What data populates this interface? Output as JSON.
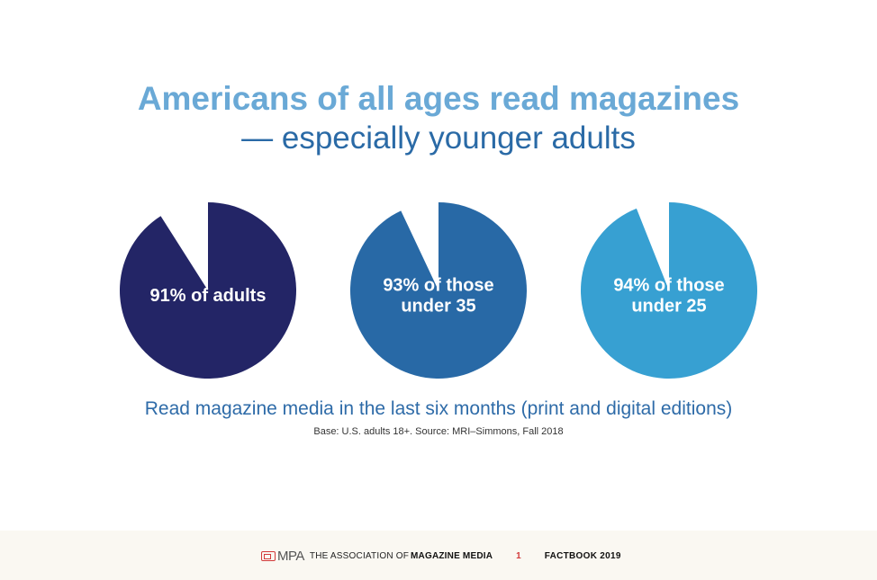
{
  "title": {
    "line1": "Americans of all ages read magazines",
    "line2": "— especially younger adults"
  },
  "chart_data": {
    "type": "pie",
    "charts": [
      {
        "label_lines": [
          "91% of adults"
        ],
        "value": 91,
        "color": "#232566"
      },
      {
        "label_lines": [
          "93% of those",
          "under 35"
        ],
        "value": 93,
        "color": "#2869a6"
      },
      {
        "label_lines": [
          "94% of those",
          "under 25"
        ],
        "value": 94,
        "color": "#37a0d2"
      }
    ]
  },
  "caption": "Read magazine media in the last six months (print and digital editions)",
  "source": "Base: U.S. adults 18+. Source: MRI–Simmons, Fall 2018",
  "footer": {
    "logo_text": "MPA",
    "association": "THE ASSOCIATION OF",
    "association_bold": "MAGAZINE MEDIA",
    "page_number": "1",
    "factbook": "FACTBOOK 2019"
  }
}
